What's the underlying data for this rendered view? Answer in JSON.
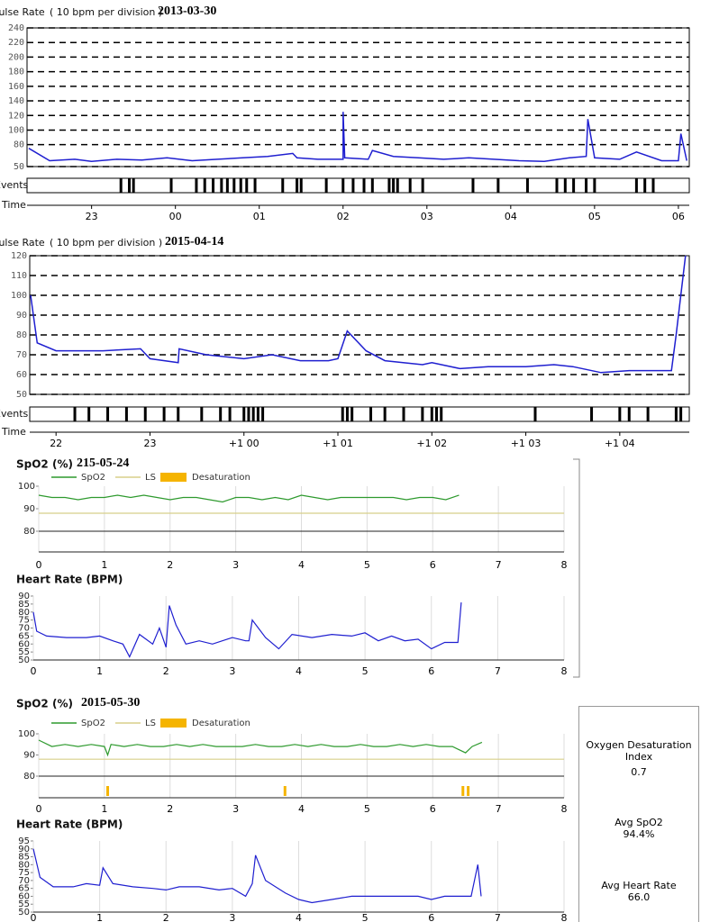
{
  "chart_data": [
    {
      "type": "line",
      "title": "Pulse Rate",
      "subtitle": "( 10 bpm per division )",
      "date": "2013-03-30",
      "event_label": "Events",
      "xlabel": "Time",
      "series": [
        {
          "color": "#1f1fd0",
          "x": [
            22.25,
            22.5,
            22.8,
            23.0,
            23.3,
            23.6,
            23.9,
            24.2,
            24.5,
            24.8,
            25.1,
            25.4,
            25.45,
            25.7,
            26.0,
            26.0,
            26.02,
            26.3,
            26.35,
            26.6,
            26.9,
            27.2,
            27.5,
            27.8,
            28.1,
            28.4,
            28.7,
            28.9,
            28.92,
            29.0,
            29.3,
            29.5,
            29.8,
            30.0,
            30.03,
            30.1
          ],
          "values": [
            75,
            58,
            60,
            57,
            60,
            59,
            62,
            58,
            60,
            62,
            64,
            68,
            62,
            60,
            60,
            125,
            62,
            60,
            72,
            64,
            62,
            60,
            62,
            60,
            58,
            57,
            62,
            64,
            115,
            62,
            60,
            70,
            58,
            58,
            95,
            58
          ]
        }
      ],
      "events": [
        23.35,
        23.45,
        23.5,
        23.95,
        24.25,
        24.35,
        24.45,
        24.55,
        24.62,
        24.7,
        24.78,
        24.85,
        24.95,
        25.28,
        25.45,
        25.5,
        25.8,
        26.0,
        26.12,
        26.25,
        26.35,
        26.55,
        26.6,
        26.65,
        26.8,
        26.95,
        27.55,
        27.85,
        28.2,
        28.55,
        28.65,
        28.75,
        28.9,
        29.0,
        29.5,
        29.6,
        29.7
      ],
      "xlim": [
        22.23,
        30.13
      ],
      "ylim": [
        50,
        240
      ],
      "yticks": [
        50,
        80,
        100,
        120,
        140,
        160,
        180,
        200,
        220,
        240
      ],
      "xticks": [
        23,
        {
          "value": 24,
          "label": "00"
        },
        {
          "value": 25,
          "label": "01"
        },
        {
          "value": 26,
          "label": "02"
        },
        {
          "value": 27,
          "label": "03"
        },
        {
          "value": 28,
          "label": "04"
        },
        {
          "value": 29,
          "label": "05"
        },
        {
          "value": 30,
          "label": "06"
        }
      ],
      "grid": "y"
    },
    {
      "type": "line",
      "title": "Pulse Rate",
      "subtitle": "( 10 bpm per division )",
      "date": "2015-04-14",
      "event_label": "Events",
      "xlabel": "Time",
      "series": [
        {
          "color": "#1f1fd0",
          "x": [
            21.73,
            21.8,
            22.0,
            22.5,
            22.9,
            23.0,
            23.3,
            23.31,
            23.6,
            24.0,
            24.3,
            24.6,
            24.9,
            25.0,
            25.1,
            25.3,
            25.5,
            25.9,
            26.0,
            26.3,
            26.6,
            27.0,
            27.3,
            27.5,
            27.8,
            28.1,
            28.4,
            28.55,
            28.6,
            28.65,
            28.7
          ],
          "values": [
            100,
            76,
            72,
            72,
            73,
            68,
            66,
            73,
            70,
            68,
            70,
            67,
            67,
            68,
            82,
            72,
            67,
            65,
            66,
            63,
            64,
            64,
            65,
            64,
            61,
            62,
            62,
            62,
            80,
            100,
            120
          ]
        }
      ],
      "events": [
        22.2,
        22.35,
        22.55,
        22.75,
        22.95,
        23.15,
        23.3,
        23.55,
        23.75,
        23.85,
        24.0,
        24.05,
        24.1,
        24.15,
        24.2,
        25.05,
        25.1,
        25.15,
        25.35,
        25.5,
        25.7,
        25.9,
        26.0,
        26.05,
        26.1,
        27.1,
        27.7,
        28.0,
        28.1,
        28.3,
        28.6,
        28.65
      ],
      "xlim": [
        21.72,
        28.74
      ],
      "ylim": [
        50,
        120
      ],
      "yticks": [
        50,
        60,
        70,
        80,
        90,
        100,
        110,
        120
      ],
      "xticks": [
        22,
        23,
        {
          "value": 24,
          "label": "+1 00"
        },
        {
          "value": 25,
          "label": "+1 01"
        },
        {
          "value": 26,
          "label": "+1 02"
        },
        {
          "value": 27,
          "label": "+1 03"
        },
        {
          "value": 28,
          "label": "+1 04"
        }
      ],
      "grid": "y"
    },
    {
      "type": "line",
      "title": "SpO2 (%)",
      "date": "215-05-24",
      "series": [
        {
          "name": "SpO2",
          "color": "#2e9a2e",
          "x": [
            0,
            0.2,
            0.4,
            0.6,
            0.8,
            1.0,
            1.2,
            1.4,
            1.6,
            1.8,
            2.0,
            2.2,
            2.4,
            2.6,
            2.8,
            3.0,
            3.2,
            3.4,
            3.6,
            3.8,
            4.0,
            4.2,
            4.4,
            4.6,
            4.8,
            5.0,
            5.2,
            5.4,
            5.6,
            5.8,
            6.0,
            6.2,
            6.4
          ],
          "values": [
            96,
            95,
            95,
            94,
            95,
            95,
            96,
            95,
            96,
            95,
            94,
            95,
            95,
            94,
            93,
            95,
            95,
            94,
            95,
            94,
            96,
            95,
            94,
            95,
            95,
            95,
            95,
            95,
            94,
            95,
            95,
            94,
            96
          ]
        },
        {
          "name": "LS",
          "color": "#d8cf8a",
          "x": [
            0,
            8
          ],
          "values": [
            88,
            88
          ]
        }
      ],
      "desaturation": {
        "name": "Desaturation",
        "color": "#f5b400",
        "x": []
      },
      "xlim": [
        0,
        8
      ],
      "ylim": [
        80,
        100
      ],
      "yticks": [
        80,
        90,
        100
      ],
      "xticks": [
        0,
        1,
        2,
        3,
        4,
        5,
        6,
        7,
        8
      ],
      "grid": "x"
    },
    {
      "type": "line",
      "title": "Heart Rate (BPM)",
      "series": [
        {
          "color": "#1f1fd0",
          "x": [
            0,
            0.05,
            0.2,
            0.5,
            0.8,
            1.0,
            1.2,
            1.35,
            1.45,
            1.6,
            1.8,
            1.9,
            2.0,
            2.05,
            2.15,
            2.3,
            2.5,
            2.7,
            3.0,
            3.2,
            3.25,
            3.3,
            3.5,
            3.7,
            3.9,
            4.2,
            4.5,
            4.8,
            5.0,
            5.2,
            5.4,
            5.6,
            5.8,
            6.0,
            6.2,
            6.4,
            6.45
          ],
          "values": [
            80,
            68,
            65,
            64,
            64,
            65,
            62,
            60,
            52,
            66,
            60,
            70,
            58,
            84,
            72,
            60,
            62,
            60,
            64,
            62,
            62,
            75,
            64,
            57,
            66,
            64,
            66,
            65,
            67,
            62,
            65,
            62,
            63,
            57,
            61,
            61,
            86
          ]
        }
      ],
      "xlim": [
        0,
        8
      ],
      "ylim": [
        50,
        90
      ],
      "yticks": [
        50,
        55,
        60,
        65,
        70,
        75,
        80,
        85,
        90
      ],
      "xticks": [
        0,
        1,
        2,
        3,
        4,
        5,
        6,
        7,
        8
      ],
      "grid": "x"
    },
    {
      "type": "line",
      "title": "SpO2 (%)",
      "date": "2015-05-30",
      "series": [
        {
          "name": "SpO2",
          "color": "#2e9a2e",
          "x": [
            0,
            0.2,
            0.4,
            0.6,
            0.8,
            1.0,
            1.05,
            1.1,
            1.3,
            1.5,
            1.7,
            1.9,
            2.1,
            2.3,
            2.5,
            2.7,
            2.9,
            3.1,
            3.3,
            3.5,
            3.7,
            3.9,
            4.1,
            4.3,
            4.5,
            4.7,
            4.9,
            5.1,
            5.3,
            5.5,
            5.7,
            5.9,
            6.1,
            6.3,
            6.5,
            6.6,
            6.75
          ],
          "values": [
            97,
            94,
            95,
            94,
            95,
            94,
            90,
            95,
            94,
            95,
            94,
            94,
            95,
            94,
            95,
            94,
            94,
            94,
            95,
            94,
            94,
            95,
            94,
            95,
            94,
            94,
            95,
            94,
            94,
            95,
            94,
            95,
            94,
            94,
            91,
            94,
            96
          ]
        },
        {
          "name": "LS",
          "color": "#d8cf8a",
          "x": [
            0,
            8
          ],
          "values": [
            88,
            88
          ]
        }
      ],
      "desaturation": {
        "name": "Desaturation",
        "color": "#f5b400",
        "x": [
          1.05,
          3.75,
          6.46,
          6.54
        ]
      },
      "xlim": [
        0,
        8
      ],
      "ylim": [
        80,
        100
      ],
      "yticks": [
        80,
        90,
        100
      ],
      "xticks": [
        0,
        1,
        2,
        3,
        4,
        5,
        6,
        7,
        8
      ],
      "grid": "x"
    },
    {
      "type": "line",
      "title": "Heart Rate (BPM)",
      "series": [
        {
          "color": "#1f1fd0",
          "x": [
            0,
            0.1,
            0.3,
            0.6,
            0.8,
            1.0,
            1.05,
            1.2,
            1.5,
            1.8,
            2.0,
            2.2,
            2.5,
            2.8,
            3.0,
            3.2,
            3.3,
            3.35,
            3.5,
            3.8,
            4.0,
            4.2,
            4.5,
            4.8,
            5.0,
            5.3,
            5.5,
            5.8,
            6.0,
            6.2,
            6.5,
            6.6,
            6.7,
            6.75
          ],
          "values": [
            90,
            72,
            66,
            66,
            68,
            67,
            78,
            68,
            66,
            65,
            64,
            66,
            66,
            64,
            65,
            60,
            68,
            86,
            70,
            62,
            58,
            56,
            58,
            60,
            60,
            60,
            60,
            60,
            58,
            60,
            60,
            60,
            80,
            60
          ]
        }
      ],
      "xlim": [
        0,
        8
      ],
      "ylim": [
        50,
        95
      ],
      "yticks": [
        50,
        55,
        60,
        65,
        70,
        75,
        80,
        85,
        90,
        95
      ],
      "xticks": [
        0,
        1,
        2,
        3,
        4,
        5,
        6,
        7,
        8
      ],
      "grid": "x"
    }
  ],
  "summary": [
    {
      "label": "Oxygen Desaturation Index",
      "value": "0.7"
    },
    {
      "label": "Avg SpO2",
      "value": "94.4%"
    },
    {
      "label": "Avg Heart Rate",
      "value": "66.0"
    }
  ]
}
